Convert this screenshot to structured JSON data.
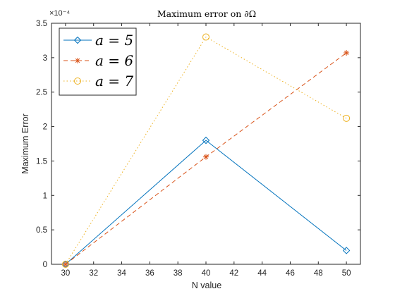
{
  "chart_data": {
    "type": "line",
    "title": "Maximum error on ∂Ω",
    "xlabel": "N value",
    "ylabel": "Maximum Error",
    "y_exponent_label": "×10⁻⁴",
    "x": [
      30,
      40,
      50
    ],
    "xlim": [
      29,
      51
    ],
    "ylim": [
      0,
      3.5
    ],
    "y_scale": 0.0001,
    "xticks": [
      30,
      32,
      34,
      36,
      38,
      40,
      42,
      44,
      46,
      48,
      50
    ],
    "yticks": [
      0,
      0.5,
      1,
      1.5,
      2,
      2.5,
      3,
      3.5
    ],
    "grid": false,
    "legend_position": "top-left",
    "series": [
      {
        "name": "a = 5",
        "values": [
          0.0,
          1.8,
          0.2
        ],
        "color": "#0072BD",
        "line": "solid",
        "marker": "diamond"
      },
      {
        "name": "a = 6",
        "values": [
          0.0,
          1.56,
          3.07
        ],
        "color": "#D95319",
        "line": "dashed",
        "marker": "asterisk"
      },
      {
        "name": "a = 7",
        "values": [
          0.0,
          3.3,
          2.12
        ],
        "color": "#EDB120",
        "line": "dotted",
        "marker": "circle"
      }
    ]
  }
}
